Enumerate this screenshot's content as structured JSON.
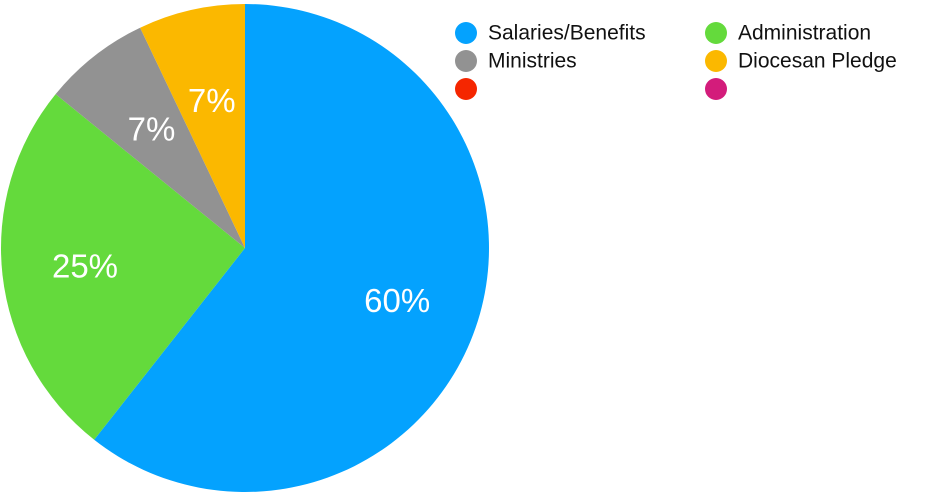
{
  "chart_data": {
    "type": "pie",
    "start_angle": "12 o'clock",
    "direction": "clockwise",
    "slices": [
      {
        "name": "Salaries/Benefits",
        "value": 60,
        "label": "60%",
        "color": "#04A2FE"
      },
      {
        "name": "Administration",
        "value": 25,
        "label": "25%",
        "color": "#64DA3C"
      },
      {
        "name": "Ministries",
        "value": 7,
        "label": "7%",
        "color": "#929292"
      },
      {
        "name": "Diocesan Pledge",
        "value": 7,
        "label": "7%",
        "color": "#FBB800"
      }
    ],
    "legend": {
      "placement": "top-right",
      "entries": [
        {
          "name": "Salaries/Benefits",
          "color": "#04A2FE"
        },
        {
          "name": "Administration",
          "color": "#64DA3C"
        },
        {
          "name": "Ministries",
          "color": "#929292"
        },
        {
          "name": "Diocesan Pledge",
          "color": "#FBB800"
        },
        {
          "name": "",
          "color": "#F52600"
        },
        {
          "name": "",
          "color": "#D31C7B"
        }
      ]
    }
  }
}
